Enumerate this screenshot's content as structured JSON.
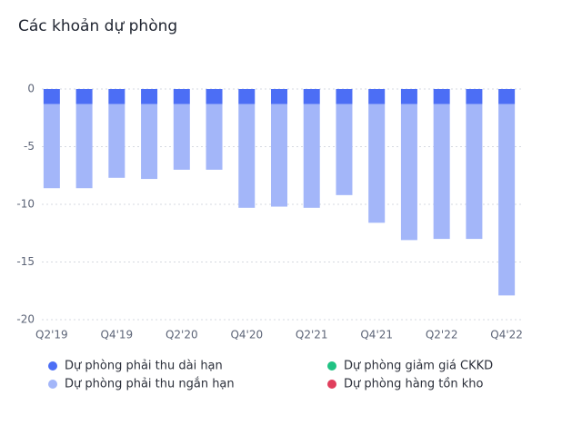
{
  "chart_data": {
    "type": "bar",
    "stacked": true,
    "title": "Các khoản dự phòng",
    "categories": [
      "Q2'19",
      null,
      "Q4'19",
      null,
      "Q2'20",
      null,
      "Q4'20",
      null,
      "Q2'21",
      null,
      "Q4'21",
      null,
      "Q2'22",
      null,
      "Q4'22"
    ],
    "series": [
      {
        "name": "Dự phòng phải thu dài hạn",
        "color": "#4c6ef5",
        "values": [
          -1.3,
          -1.3,
          -1.3,
          -1.3,
          -1.3,
          -1.3,
          -1.3,
          -1.3,
          -1.3,
          -1.3,
          -1.3,
          -1.3,
          -1.3,
          -1.3,
          -1.3
        ]
      },
      {
        "name": "Dự phòng phải thu ngắn hạn",
        "color": "#a3b6f9",
        "values": [
          -7.3,
          -7.3,
          -6.4,
          -6.5,
          -5.7,
          -5.7,
          -9.0,
          -8.9,
          -9.0,
          -7.9,
          -10.3,
          -11.8,
          -11.7,
          -11.7,
          -16.6
        ]
      },
      {
        "name": "Dự phòng giảm giá CKKD",
        "color": "#20c283",
        "values": [
          0,
          0,
          0,
          0,
          0,
          0,
          0,
          0,
          0,
          0,
          0,
          0,
          0,
          0,
          0
        ]
      },
      {
        "name": "Dự phòng hàng tồn kho",
        "color": "#e03e5c",
        "values": [
          0,
          0,
          0,
          0,
          0,
          0,
          0,
          0,
          0,
          0,
          0,
          0,
          0,
          0,
          0
        ]
      }
    ],
    "ylim": [
      -20,
      0
    ],
    "yticks": [
      0,
      -5,
      -10,
      -15,
      -20
    ],
    "grid": true
  }
}
